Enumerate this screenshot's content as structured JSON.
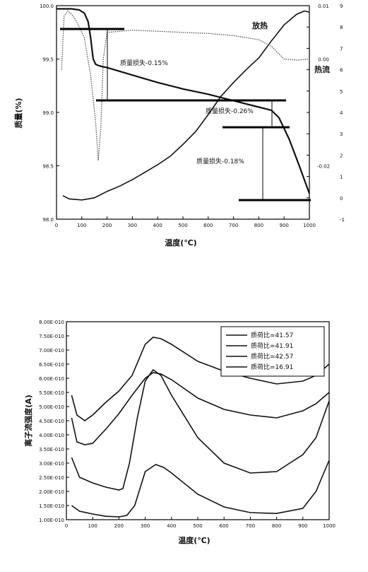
{
  "chart_data": [
    {
      "type": "line",
      "xlabel": "温度(℃)",
      "ylabel_left": "质量(%)",
      "ylabel_right": "放热",
      "xlim": [
        0,
        1000
      ],
      "ylim_left": [
        98.0,
        100.0
      ],
      "ylim_right_a": [
        -0.03,
        0.01
      ],
      "ylim_right_b": [
        -1,
        9
      ],
      "x_ticks": [
        "0",
        "100",
        "200",
        "300",
        "400",
        "500",
        "600",
        "700",
        "800",
        "900",
        "1000"
      ],
      "y_ticks_left": [
        "98.0",
        "98.5",
        "99.0",
        "99.5",
        "100.0"
      ],
      "y_ticks_right_a": [
        "0.00",
        "0.01",
        "-0.02"
      ],
      "y_ticks_right_b": [
        "-1",
        "0",
        "1",
        "2",
        "3",
        "4",
        "5",
        "6",
        "7",
        "8",
        "9"
      ],
      "series": [
        {
          "name": "质量",
          "style": "solid-thick",
          "x": [
            0,
            30,
            60,
            90,
            110,
            125,
            135,
            145,
            155,
            165,
            180,
            200,
            300,
            400,
            500,
            600,
            700,
            800,
            850,
            880,
            920,
            960,
            1000
          ],
          "y": [
            99.97,
            99.97,
            99.97,
            99.96,
            99.93,
            99.85,
            99.7,
            99.5,
            99.45,
            99.44,
            99.43,
            99.42,
            99.35,
            99.28,
            99.22,
            99.17,
            99.11,
            99.05,
            99.02,
            98.95,
            98.75,
            98.5,
            98.24
          ]
        },
        {
          "name": "放热",
          "axis": "right_b",
          "style": "solid",
          "x": [
            25,
            50,
            100,
            150,
            200,
            250,
            300,
            350,
            400,
            450,
            500,
            550,
            600,
            650,
            700,
            750,
            800,
            850,
            900,
            950,
            980,
            1000
          ],
          "y": [
            0.1,
            -0.05,
            -0.1,
            0.0,
            0.3,
            0.55,
            0.85,
            1.2,
            1.55,
            1.95,
            2.5,
            3.1,
            3.9,
            4.75,
            5.4,
            6.0,
            6.55,
            7.35,
            8.1,
            8.6,
            8.75,
            8.7
          ]
        },
        {
          "name": "DTG",
          "axis": "left",
          "style": "dotted",
          "x": [
            20,
            30,
            45,
            60,
            80,
            110,
            135,
            155,
            165,
            175,
            185,
            200,
            300,
            400,
            500,
            600,
            700,
            800,
            850,
            870,
            900,
            950,
            1000
          ],
          "y": [
            99.4,
            99.9,
            99.95,
            99.92,
            99.85,
            99.7,
            99.35,
            98.9,
            98.55,
            98.85,
            99.5,
            99.75,
            99.77,
            99.76,
            99.75,
            99.74,
            99.72,
            99.68,
            99.62,
            99.57,
            99.5,
            99.49,
            99.5
          ]
        }
      ],
      "annotations": [
        "质量损失-0.15%",
        "质量损失-0.26%",
        "质量损失-0.18%"
      ],
      "side_labels": [
        "放热",
        "热流"
      ],
      "grid": false,
      "legend": "none"
    },
    {
      "type": "line",
      "xlabel": "温度(℃)",
      "ylabel": "离子流强度(A)",
      "xlim": [
        0,
        1000
      ],
      "ylim": [
        1e-10,
        8e-10
      ],
      "x_ticks": [
        "0",
        "100",
        "200",
        "300",
        "400",
        "500",
        "600",
        "700",
        "800",
        "900",
        "1000"
      ],
      "y_ticks": [
        "1.00E-010",
        "1.50E-010",
        "2.00E-010",
        "2.50E-010",
        "3.00E-010",
        "3.50E-010",
        "4.00E-010",
        "4.50E-010",
        "5.00E-010",
        "5.50E-010",
        "6.00E-010",
        "6.50E-010",
        "7.00E-010",
        "7.50E-010",
        "8.00E-010"
      ],
      "legend": "top-right",
      "grid": false,
      "series": [
        {
          "name": "质荷比=41.57",
          "x": [
            20,
            40,
            70,
            100,
            150,
            200,
            250,
            300,
            330,
            360,
            400,
            500,
            600,
            700,
            800,
            900,
            950,
            1000
          ],
          "y": [
            5.4e-10,
            4.7e-10,
            4.5e-10,
            4.7e-10,
            5.15e-10,
            5.55e-10,
            6.1e-10,
            7.2e-10,
            7.45e-10,
            7.4e-10,
            7.2e-10,
            6.6e-10,
            6.25e-10,
            6e-10,
            5.8e-10,
            5.9e-10,
            6.1e-10,
            6.5e-10
          ]
        },
        {
          "name": "质荷比=41.91",
          "x": [
            20,
            40,
            70,
            100,
            150,
            200,
            250,
            300,
            330,
            360,
            400,
            500,
            600,
            700,
            800,
            900,
            950,
            1000
          ],
          "y": [
            4.6e-10,
            3.75e-10,
            3.65e-10,
            3.7e-10,
            4.2e-10,
            4.75e-10,
            5.4e-10,
            6e-10,
            6.2e-10,
            6.15e-10,
            5.95e-10,
            5.3e-10,
            4.9e-10,
            4.7e-10,
            4.6e-10,
            4.85e-10,
            5.1e-10,
            5.5e-10
          ]
        },
        {
          "name": "质荷比=42.57",
          "x": [
            20,
            50,
            100,
            150,
            200,
            215,
            240,
            270,
            300,
            330,
            360,
            400,
            500,
            600,
            700,
            800,
            900,
            950,
            1000
          ],
          "y": [
            3.2e-10,
            2.5e-10,
            2.3e-10,
            2.15e-10,
            2.05e-10,
            2.1e-10,
            3e-10,
            4.6e-10,
            5.9e-10,
            6.3e-10,
            6.1e-10,
            5.4e-10,
            3.9e-10,
            3e-10,
            2.65e-10,
            2.7e-10,
            3.3e-10,
            3.9e-10,
            5.2e-10
          ]
        },
        {
          "name": "质荷比=16.91",
          "x": [
            20,
            50,
            100,
            150,
            200,
            230,
            260,
            300,
            340,
            370,
            400,
            500,
            600,
            700,
            800,
            900,
            950,
            1000
          ],
          "y": [
            1.5e-10,
            1.3e-10,
            1.2e-10,
            1.12e-10,
            1.1e-10,
            1.15e-10,
            1.5e-10,
            2.7e-10,
            2.95e-10,
            2.85e-10,
            2.65e-10,
            1.9e-10,
            1.45e-10,
            1.25e-10,
            1.22e-10,
            1.4e-10,
            2e-10,
            3.1e-10
          ]
        }
      ]
    }
  ]
}
